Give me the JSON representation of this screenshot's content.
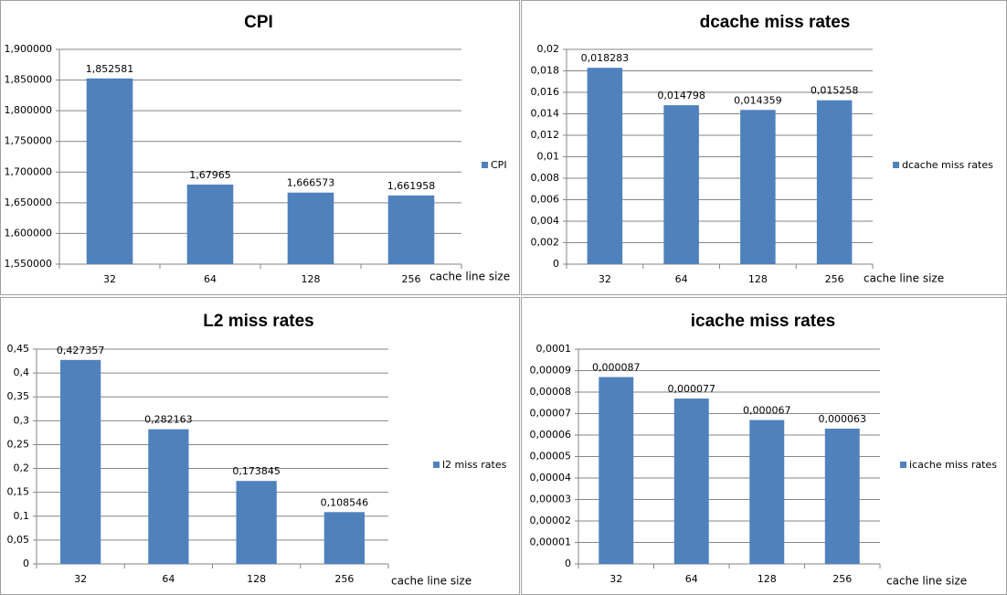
{
  "chart_data": [
    {
      "type": "bar",
      "title": "CPI",
      "x_label": "cache line size",
      "categories": [
        "32",
        "64",
        "128",
        "256"
      ],
      "series": [
        {
          "name": "CPI",
          "color": "#4f81bd",
          "values": [
            1.852581,
            1.67965,
            1.666573,
            1.661958
          ],
          "value_labels": [
            "1,852581",
            "1,67965",
            "1,666573",
            "1,661958"
          ]
        }
      ],
      "ylim": [
        1.55,
        1.9
      ],
      "yticks": [
        {
          "value": 1.55,
          "label": "1,550000"
        },
        {
          "value": 1.6,
          "label": "1,600000"
        },
        {
          "value": 1.65,
          "label": "1,650000"
        },
        {
          "value": 1.7,
          "label": "1,700000"
        },
        {
          "value": 1.75,
          "label": "1,750000"
        },
        {
          "value": 1.8,
          "label": "1,800000"
        },
        {
          "value": 1.85,
          "label": "1,850000"
        },
        {
          "value": 1.9,
          "label": "1,900000"
        }
      ],
      "grid": true,
      "legend": "right"
    },
    {
      "type": "bar",
      "title": "dcache miss rates",
      "x_label": "cache line size",
      "categories": [
        "32",
        "64",
        "128",
        "256"
      ],
      "series": [
        {
          "name": "dcache miss rates",
          "color": "#4f81bd",
          "values": [
            0.018283,
            0.014798,
            0.014359,
            0.015258
          ],
          "value_labels": [
            "0,018283",
            "0,014798",
            "0,014359",
            "0,015258"
          ]
        }
      ],
      "ylim": [
        0,
        0.02
      ],
      "yticks": [
        0,
        {
          "value": 0.002,
          "label": "0,002"
        },
        {
          "value": 0.004,
          "label": "0,004"
        },
        {
          "value": 0.006,
          "label": "0,006"
        },
        {
          "value": 0.008,
          "label": "0,008"
        },
        {
          "value": 0.01,
          "label": "0,01"
        },
        {
          "value": 0.012,
          "label": "0,012"
        },
        {
          "value": 0.014,
          "label": "0,014"
        },
        {
          "value": 0.016,
          "label": "0,016"
        },
        {
          "value": 0.018,
          "label": "0,018"
        },
        {
          "value": 0.02,
          "label": "0,02"
        }
      ],
      "grid": true,
      "legend": "right"
    },
    {
      "type": "bar",
      "title": "L2 miss rates",
      "x_label": "cache line size",
      "categories": [
        "32",
        "64",
        "128",
        "256"
      ],
      "series": [
        {
          "name": "l2 miss rates",
          "color": "#4f81bd",
          "values": [
            0.427357,
            0.282163,
            0.173845,
            0.108546
          ],
          "value_labels": [
            "0,427357",
            "0,282163",
            "0,173845",
            "0,108546"
          ]
        }
      ],
      "ylim": [
        0,
        0.45
      ],
      "yticks": [
        0,
        {
          "value": 0.05,
          "label": "0,05"
        },
        {
          "value": 0.1,
          "label": "0,1"
        },
        {
          "value": 0.15,
          "label": "0,15"
        },
        {
          "value": 0.2,
          "label": "0,2"
        },
        {
          "value": 0.25,
          "label": "0,25"
        },
        {
          "value": 0.3,
          "label": "0,3"
        },
        {
          "value": 0.35,
          "label": "0,35"
        },
        {
          "value": 0.4,
          "label": "0,4"
        },
        {
          "value": 0.45,
          "label": "0,45"
        }
      ],
      "grid": true,
      "legend": "right"
    },
    {
      "type": "bar",
      "title": "icache miss rates",
      "x_label": "cache line size",
      "categories": [
        "32",
        "64",
        "128",
        "256"
      ],
      "series": [
        {
          "name": "icache miss rates",
          "color": "#4f81bd",
          "values": [
            8.7e-05,
            7.7e-05,
            6.7e-05,
            6.3e-05
          ],
          "value_labels": [
            "0,000087",
            "0,000077",
            "0,000067",
            "0,000063"
          ]
        }
      ],
      "ylim": [
        0,
        0.0001
      ],
      "yticks": [
        0,
        {
          "value": 1e-05,
          "label": "0,00001"
        },
        {
          "value": 2e-05,
          "label": "0,00002"
        },
        {
          "value": 3e-05,
          "label": "0,00003"
        },
        {
          "value": 4e-05,
          "label": "0,00004"
        },
        {
          "value": 5e-05,
          "label": "0,00005"
        },
        {
          "value": 6e-05,
          "label": "0,00006"
        },
        {
          "value": 7e-05,
          "label": "0,00007"
        },
        {
          "value": 8e-05,
          "label": "0,00008"
        },
        {
          "value": 9e-05,
          "label": "0,00009"
        },
        {
          "value": 0.0001,
          "label": "0,0001"
        }
      ],
      "grid": true,
      "legend": "right"
    }
  ]
}
